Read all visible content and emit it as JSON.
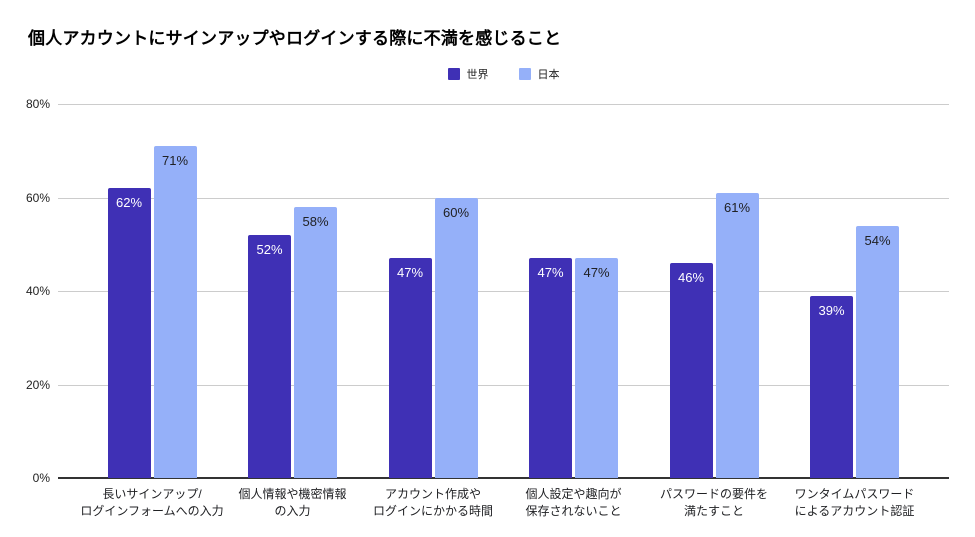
{
  "title": "個人アカウントにサインアップやログインする際に不満を感じること",
  "chart_data": {
    "type": "bar",
    "title": "個人アカウントにサインアップやログインする際に不満を感じること",
    "categories": [
      [
        "長いサインアップ/",
        "ログインフォームへの入力"
      ],
      [
        "個人情報や機密情報",
        "の入力"
      ],
      [
        "アカウント作成や",
        "ログインにかかる時間"
      ],
      [
        "個人設定や趣向が",
        "保存されないこと"
      ],
      [
        "パスワードの要件を",
        "満たすこと"
      ],
      [
        "ワンタイムパスワード",
        "によるアカウント認証"
      ]
    ],
    "series": [
      {
        "name": "世界",
        "color": "#3F30B5",
        "label_color": "#FFFFFF",
        "values": [
          62,
          52,
          47,
          47,
          46,
          39
        ]
      },
      {
        "name": "日本",
        "color": "#95B0F9",
        "label_color": "#202124",
        "values": [
          71,
          58,
          60,
          47,
          61,
          54
        ]
      }
    ],
    "value_suffix": "%",
    "y_tick_values": [
      0,
      20,
      40,
      60,
      80
    ],
    "y_tick_labels": [
      "0%",
      "20%",
      "40%",
      "60%",
      "80%"
    ],
    "ylim": [
      0,
      80
    ],
    "grid": true,
    "legend_position": "top"
  },
  "colors": {
    "grid": "#CCCCCC",
    "axis": "#333333",
    "text": "#202124"
  }
}
